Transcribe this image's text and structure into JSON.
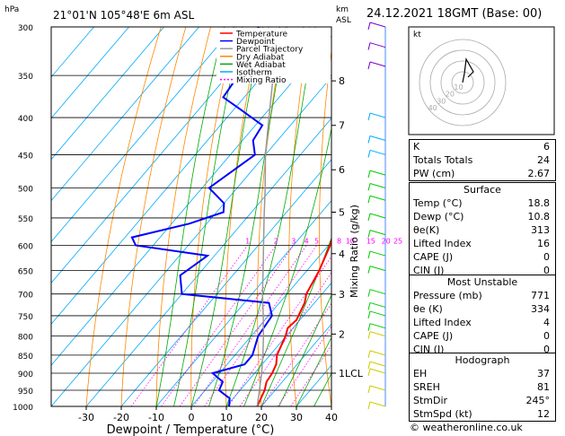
{
  "header": {
    "hpa_unit": "hPa",
    "location": "21°01'N  105°48'E  6m  ASL",
    "km_unit": "km",
    "asl_unit": "ASL",
    "datetime": "24.12.2021  18GMT  (Base: 00)"
  },
  "legend": [
    {
      "label": "Temperature",
      "color": "#ff0000",
      "dash": ""
    },
    {
      "label": "Dewpoint",
      "color": "#0000ff",
      "dash": ""
    },
    {
      "label": "Parcel Trajectory",
      "color": "#999999",
      "dash": ""
    },
    {
      "label": "Dry Adiabat",
      "color": "#ff8800",
      "dash": ""
    },
    {
      "label": "Wet Adiabat",
      "color": "#00aa00",
      "dash": ""
    },
    {
      "label": "Isotherm",
      "color": "#00aaff",
      "dash": ""
    },
    {
      "label": "Mixing Ratio",
      "color": "#ff00ff",
      "dash": "2,2"
    }
  ],
  "chart_data": {
    "type": "line",
    "xlabel": "Dewpoint / Temperature (°C)",
    "ylabel_right": "Mixing Ratio (g/kg)",
    "x_ticks": [
      "-30",
      "-20",
      "-10",
      "0",
      "10",
      "20",
      "30",
      "40"
    ],
    "x_tick_values": [
      -30,
      -20,
      -10,
      0,
      10,
      20,
      30,
      40
    ],
    "pressure_ticks": [
      "300",
      "350",
      "400",
      "450",
      "500",
      "550",
      "600",
      "650",
      "700",
      "750",
      "800",
      "850",
      "900",
      "950",
      "1000"
    ],
    "pressure_values": [
      300,
      350,
      400,
      450,
      500,
      550,
      600,
      650,
      700,
      750,
      800,
      850,
      900,
      950,
      1000
    ],
    "xlim": [
      -40,
      40
    ],
    "plim": [
      300,
      1000
    ],
    "km_ticks": [
      {
        "label": "8",
        "p": 356
      },
      {
        "label": "7",
        "p": 410
      },
      {
        "label": "6",
        "p": 472
      },
      {
        "label": "5",
        "p": 540
      },
      {
        "label": "4",
        "p": 616
      },
      {
        "label": "3",
        "p": 701
      },
      {
        "label": "2",
        "p": 795
      },
      {
        "label": "1LCL",
        "p": 900
      }
    ],
    "mixing_labels": [
      "1",
      "2",
      "3",
      "4",
      "5",
      "8",
      "10",
      "15",
      "20",
      "25"
    ],
    "mixing_values": [
      1,
      2,
      3,
      4,
      5,
      8,
      10,
      15,
      20,
      25
    ],
    "mixing_label_p": 600,
    "series": [
      {
        "name": "Temperature",
        "color": "#ff0000",
        "points": [
          [
            1000,
            18.8
          ],
          [
            950,
            17
          ],
          [
            925,
            15.5
          ],
          [
            900,
            15
          ],
          [
            875,
            14
          ],
          [
            850,
            12
          ],
          [
            800,
            9.8
          ],
          [
            780,
            8.5
          ],
          [
            760,
            9
          ],
          [
            720,
            7.2
          ],
          [
            700,
            5.5
          ],
          [
            650,
            3.5
          ],
          [
            600,
            0.5
          ],
          [
            550,
            -4
          ],
          [
            500,
            -8
          ],
          [
            450,
            -13
          ],
          [
            400,
            -20
          ],
          [
            375,
            -24
          ],
          [
            350,
            -28
          ],
          [
            300,
            -37
          ]
        ]
      },
      {
        "name": "Dewpoint",
        "color": "#0000ff",
        "points": [
          [
            1000,
            10.8
          ],
          [
            975,
            9
          ],
          [
            950,
            4
          ],
          [
            925,
            3
          ],
          [
            900,
            -2
          ],
          [
            875,
            5
          ],
          [
            850,
            5
          ],
          [
            800,
            2
          ],
          [
            750,
            1
          ],
          [
            720,
            -3
          ],
          [
            700,
            -30
          ],
          [
            660,
            -35
          ],
          [
            620,
            -32
          ],
          [
            600,
            -55
          ],
          [
            585,
            -58
          ],
          [
            560,
            -45
          ],
          [
            540,
            -38
          ],
          [
            525,
            -40
          ],
          [
            500,
            -48
          ],
          [
            450,
            -43
          ],
          [
            430,
            -47
          ],
          [
            410,
            -48
          ],
          [
            390,
            -58
          ],
          [
            375,
            -66
          ],
          [
            350,
            -67
          ],
          [
            335,
            -70
          ],
          [
            300,
            -73
          ]
        ]
      },
      {
        "name": "Parcel Trajectory",
        "color": "#999999",
        "points": [
          [
            1000,
            18.8
          ],
          [
            950,
            15.5
          ],
          [
            900,
            12
          ],
          [
            850,
            8
          ],
          [
            800,
            3.5
          ],
          [
            750,
            -1.5
          ],
          [
            700,
            -7
          ],
          [
            650,
            -12.5
          ],
          [
            600,
            -18.5
          ],
          [
            550,
            -25
          ],
          [
            500,
            -32
          ],
          [
            450,
            -40
          ],
          [
            400,
            -48
          ],
          [
            350,
            -57
          ],
          [
            300,
            -67
          ]
        ]
      }
    ]
  },
  "wind_barbs": {
    "color_upper": "#7a00cc",
    "color_mid": "#00aaff",
    "color_low": "#00cc00",
    "color_sfc": "#cccc00"
  },
  "hodograph": {
    "unit_label": "kt",
    "ring_labels": [
      "10",
      "20",
      "30",
      "40"
    ]
  },
  "indices": {
    "k_label": "K",
    "k_value": "6",
    "tt_label": "Totals Totals",
    "tt_value": "24",
    "pw_label": "PW (cm)",
    "pw_value": "2.67"
  },
  "surface": {
    "title": "Surface",
    "temp_label": "Temp (°C)",
    "temp_value": "18.8",
    "dewp_label": "Dewp (°C)",
    "dewp_value": "10.8",
    "theta_label": "θe(K)",
    "theta_value": "313",
    "li_label": "Lifted Index",
    "li_value": "16",
    "cape_label": "CAPE (J)",
    "cape_value": "0",
    "cin_label": "CIN (J)",
    "cin_value": "0"
  },
  "most_unstable": {
    "title": "Most Unstable",
    "pres_label": "Pressure (mb)",
    "pres_value": "771",
    "theta_label": "θe (K)",
    "theta_value": "334",
    "li_label": "Lifted Index",
    "li_value": "4",
    "cape_label": "CAPE (J)",
    "cape_value": "0",
    "cin_label": "CIN (J)",
    "cin_value": "0"
  },
  "hodograph_stats": {
    "title": "Hodograph",
    "eh_label": "EH",
    "eh_value": "37",
    "sreh_label": "SREH",
    "sreh_value": "81",
    "stmdir_label": "StmDir",
    "stmdir_value": "245°",
    "stmspd_label": "StmSpd (kt)",
    "stmspd_value": "12"
  },
  "footer": {
    "copyright": "© weatheronline.co.uk"
  }
}
